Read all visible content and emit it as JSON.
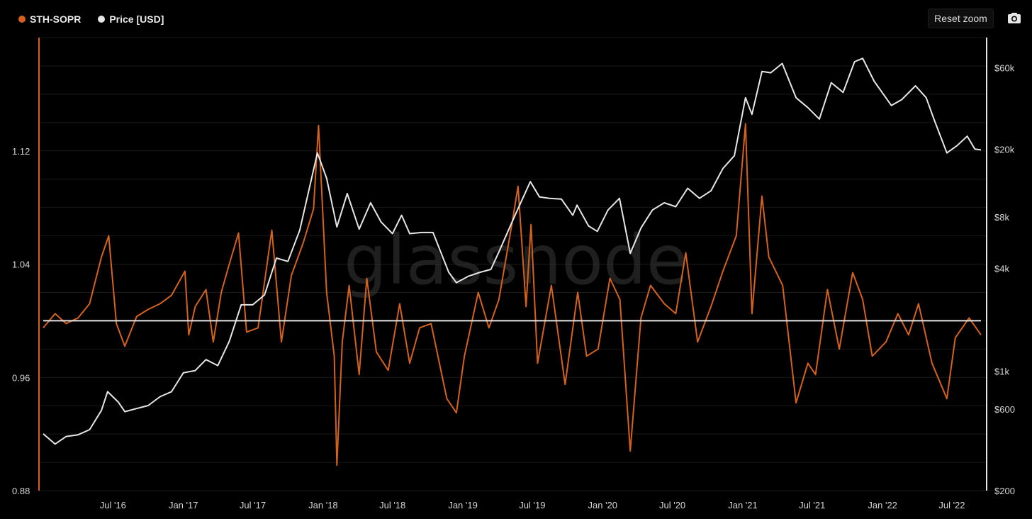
{
  "legend": {
    "sopr_label": "STH-SOPR",
    "price_label": "Price [USD]"
  },
  "toolbar": {
    "reset_zoom_label": "Reset zoom",
    "camera_icon": "camera-icon"
  },
  "watermark": "glassnode",
  "colors": {
    "background": "#000000",
    "sopr": "#d4621c",
    "price": "#e6e6e6",
    "baseline": "#e6e6e6",
    "grid": "#1a1a1a"
  },
  "chart_data": {
    "type": "line",
    "xlabel": "",
    "x_ticks": [
      "Jul '16",
      "Jan '17",
      "Jul '17",
      "Jan '18",
      "Jul '18",
      "Jan '19",
      "Jul '19",
      "Jan '20",
      "Jul '20",
      "Jan '21",
      "Jul '21",
      "Jan '22",
      "Jul '22"
    ],
    "x_range": [
      "2016-01-01",
      "2022-09-15"
    ],
    "left_axis": {
      "label": "",
      "ticks": [
        "0.88",
        "0.96",
        "1.04",
        "1.12"
      ],
      "range": [
        0.88,
        1.2
      ]
    },
    "right_axis": {
      "label": "",
      "scale": "log",
      "ticks": [
        "$200",
        "$600",
        "$1k",
        "$4k",
        "$8k",
        "$20k",
        "$60k"
      ],
      "tick_values": [
        200,
        600,
        1000,
        4000,
        8000,
        20000,
        60000
      ],
      "range": [
        200,
        90000
      ]
    },
    "baseline": 1.0,
    "series": [
      {
        "name": "STH-SOPR",
        "axis": "left",
        "points": [
          [
            "2016-01-01",
            0.995
          ],
          [
            "2016-02-01",
            1.005
          ],
          [
            "2016-03-01",
            0.998
          ],
          [
            "2016-04-01",
            1.002
          ],
          [
            "2016-05-01",
            1.012
          ],
          [
            "2016-06-01",
            1.045
          ],
          [
            "2016-06-20",
            1.06
          ],
          [
            "2016-07-10",
            0.998
          ],
          [
            "2016-08-01",
            0.982
          ],
          [
            "2016-09-01",
            1.003
          ],
          [
            "2016-10-01",
            1.008
          ],
          [
            "2016-11-01",
            1.012
          ],
          [
            "2016-12-01",
            1.018
          ],
          [
            "2017-01-05",
            1.035
          ],
          [
            "2017-01-15",
            0.99
          ],
          [
            "2017-02-01",
            1.01
          ],
          [
            "2017-03-01",
            1.022
          ],
          [
            "2017-03-20",
            0.985
          ],
          [
            "2017-04-10",
            1.02
          ],
          [
            "2017-05-01",
            1.04
          ],
          [
            "2017-05-25",
            1.062
          ],
          [
            "2017-06-15",
            0.992
          ],
          [
            "2017-07-15",
            0.995
          ],
          [
            "2017-08-05",
            1.035
          ],
          [
            "2017-08-20",
            1.064
          ],
          [
            "2017-09-14",
            0.985
          ],
          [
            "2017-10-10",
            1.032
          ],
          [
            "2017-11-10",
            1.055
          ],
          [
            "2017-12-07",
            1.079
          ],
          [
            "2017-12-20",
            1.138
          ],
          [
            "2018-01-10",
            1.02
          ],
          [
            "2018-01-30",
            0.975
          ],
          [
            "2018-02-06",
            0.898
          ],
          [
            "2018-02-20",
            0.985
          ],
          [
            "2018-03-10",
            1.025
          ],
          [
            "2018-04-05",
            0.962
          ],
          [
            "2018-04-25",
            1.03
          ],
          [
            "2018-05-20",
            0.978
          ],
          [
            "2018-06-20",
            0.965
          ],
          [
            "2018-07-20",
            1.012
          ],
          [
            "2018-08-15",
            0.97
          ],
          [
            "2018-09-10",
            0.995
          ],
          [
            "2018-10-10",
            0.998
          ],
          [
            "2018-11-20",
            0.945
          ],
          [
            "2018-12-15",
            0.935
          ],
          [
            "2019-01-05",
            0.975
          ],
          [
            "2019-02-10",
            1.02
          ],
          [
            "2019-03-10",
            0.995
          ],
          [
            "2019-04-05",
            1.015
          ],
          [
            "2019-05-10",
            1.07
          ],
          [
            "2019-05-25",
            1.095
          ],
          [
            "2019-06-15",
            1.01
          ],
          [
            "2019-06-28",
            1.068
          ],
          [
            "2019-07-15",
            0.97
          ],
          [
            "2019-08-20",
            1.025
          ],
          [
            "2019-09-25",
            0.955
          ],
          [
            "2019-10-28",
            1.02
          ],
          [
            "2019-11-20",
            0.975
          ],
          [
            "2019-12-20",
            0.98
          ],
          [
            "2020-01-20",
            1.03
          ],
          [
            "2020-02-15",
            1.015
          ],
          [
            "2020-03-13",
            0.908
          ],
          [
            "2020-04-10",
            1.002
          ],
          [
            "2020-05-05",
            1.025
          ],
          [
            "2020-06-10",
            1.012
          ],
          [
            "2020-07-10",
            1.005
          ],
          [
            "2020-08-05",
            1.048
          ],
          [
            "2020-09-05",
            0.985
          ],
          [
            "2020-10-10",
            1.01
          ],
          [
            "2020-11-10",
            1.035
          ],
          [
            "2020-12-15",
            1.06
          ],
          [
            "2021-01-08",
            1.139
          ],
          [
            "2021-01-25",
            1.005
          ],
          [
            "2021-02-20",
            1.088
          ],
          [
            "2021-03-10",
            1.045
          ],
          [
            "2021-04-15",
            1.025
          ],
          [
            "2021-05-20",
            0.942
          ],
          [
            "2021-06-20",
            0.97
          ],
          [
            "2021-07-10",
            0.962
          ],
          [
            "2021-08-10",
            1.022
          ],
          [
            "2021-09-10",
            0.98
          ],
          [
            "2021-10-15",
            1.034
          ],
          [
            "2021-11-10",
            1.015
          ],
          [
            "2021-12-05",
            0.975
          ],
          [
            "2022-01-10",
            0.985
          ],
          [
            "2022-02-10",
            1.005
          ],
          [
            "2022-03-10",
            0.99
          ],
          [
            "2022-04-05",
            1.012
          ],
          [
            "2022-05-10",
            0.97
          ],
          [
            "2022-06-18",
            0.945
          ],
          [
            "2022-07-10",
            0.988
          ],
          [
            "2022-08-15",
            1.002
          ],
          [
            "2022-09-15",
            0.99
          ]
        ]
      },
      {
        "name": "Price [USD]",
        "axis": "right",
        "points": [
          [
            "2016-01-01",
            430
          ],
          [
            "2016-02-01",
            375
          ],
          [
            "2016-03-01",
            415
          ],
          [
            "2016-04-01",
            425
          ],
          [
            "2016-05-01",
            455
          ],
          [
            "2016-06-01",
            590
          ],
          [
            "2016-06-17",
            760
          ],
          [
            "2016-07-15",
            660
          ],
          [
            "2016-08-01",
            580
          ],
          [
            "2016-09-01",
            605
          ],
          [
            "2016-10-01",
            630
          ],
          [
            "2016-11-01",
            710
          ],
          [
            "2016-12-01",
            760
          ],
          [
            "2017-01-01",
            980
          ],
          [
            "2017-02-01",
            1010
          ],
          [
            "2017-03-01",
            1170
          ],
          [
            "2017-04-01",
            1080
          ],
          [
            "2017-05-01",
            1500
          ],
          [
            "2017-06-01",
            2450
          ],
          [
            "2017-07-01",
            2450
          ],
          [
            "2017-08-01",
            2800
          ],
          [
            "2017-09-01",
            4600
          ],
          [
            "2017-10-01",
            4400
          ],
          [
            "2017-11-01",
            6700
          ],
          [
            "2017-12-17",
            19000
          ],
          [
            "2018-01-10",
            13500
          ],
          [
            "2018-02-06",
            7000
          ],
          [
            "2018-03-05",
            11000
          ],
          [
            "2018-04-05",
            6800
          ],
          [
            "2018-05-05",
            9700
          ],
          [
            "2018-06-01",
            7500
          ],
          [
            "2018-07-01",
            6400
          ],
          [
            "2018-07-25",
            8200
          ],
          [
            "2018-08-15",
            6400
          ],
          [
            "2018-09-15",
            6500
          ],
          [
            "2018-10-15",
            6500
          ],
          [
            "2018-11-25",
            3800
          ],
          [
            "2018-12-15",
            3300
          ],
          [
            "2019-01-15",
            3600
          ],
          [
            "2019-02-15",
            3800
          ],
          [
            "2019-03-15",
            3950
          ],
          [
            "2019-04-05",
            5000
          ],
          [
            "2019-05-15",
            8000
          ],
          [
            "2019-06-26",
            12900
          ],
          [
            "2019-07-20",
            10500
          ],
          [
            "2019-08-15",
            10300
          ],
          [
            "2019-09-15",
            10200
          ],
          [
            "2019-10-15",
            8200
          ],
          [
            "2019-10-26",
            9400
          ],
          [
            "2019-11-25",
            7100
          ],
          [
            "2019-12-18",
            6600
          ],
          [
            "2020-01-15",
            8800
          ],
          [
            "2020-02-14",
            10300
          ],
          [
            "2020-03-13",
            4900
          ],
          [
            "2020-04-10",
            6900
          ],
          [
            "2020-05-10",
            8800
          ],
          [
            "2020-06-10",
            9700
          ],
          [
            "2020-07-10",
            9200
          ],
          [
            "2020-08-10",
            11800
          ],
          [
            "2020-09-10",
            10300
          ],
          [
            "2020-10-10",
            11400
          ],
          [
            "2020-11-10",
            15400
          ],
          [
            "2020-12-10",
            18300
          ],
          [
            "2021-01-08",
            40000
          ],
          [
            "2021-01-25",
            32000
          ],
          [
            "2021-02-20",
            57000
          ],
          [
            "2021-03-15",
            56000
          ],
          [
            "2021-04-14",
            63500
          ],
          [
            "2021-05-20",
            40000
          ],
          [
            "2021-06-20",
            35000
          ],
          [
            "2021-07-20",
            30000
          ],
          [
            "2021-08-20",
            49000
          ],
          [
            "2021-09-20",
            43000
          ],
          [
            "2021-10-20",
            65000
          ],
          [
            "2021-11-10",
            68000
          ],
          [
            "2021-12-10",
            50000
          ],
          [
            "2022-01-24",
            36000
          ],
          [
            "2022-02-20",
            39000
          ],
          [
            "2022-03-28",
            47000
          ],
          [
            "2022-04-25",
            40000
          ],
          [
            "2022-05-15",
            30000
          ],
          [
            "2022-06-18",
            19000
          ],
          [
            "2022-07-15",
            21000
          ],
          [
            "2022-08-10",
            23800
          ],
          [
            "2022-08-30",
            20000
          ],
          [
            "2022-09-15",
            19800
          ]
        ]
      }
    ]
  }
}
